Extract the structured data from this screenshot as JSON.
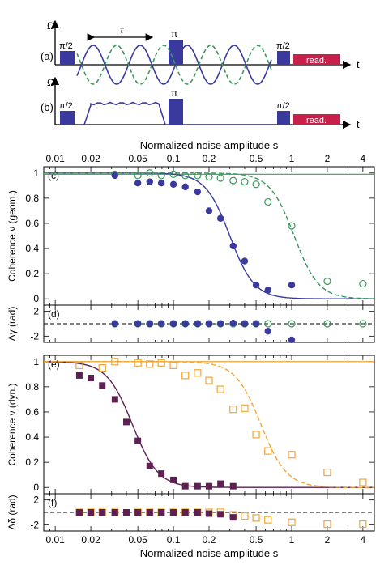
{
  "colors": {
    "blue": "#3a3a9e",
    "green": "#3a9a5c",
    "purple": "#5c2152",
    "orange": "#f2a634",
    "readout": "#c8204a",
    "pulse": "#3a3a9e"
  },
  "schematic": {
    "a": {
      "label": "(a)",
      "omega": "Ω",
      "t": "t",
      "pulse_left": "π/2",
      "pulse_mid": "π",
      "pulse_right": "π/2",
      "tau": "τ",
      "readout": "read."
    },
    "b": {
      "label": "(b)",
      "omega": "Ω",
      "t": "t",
      "pulse_left": "π/2",
      "pulse_mid": "π",
      "pulse_right": "π/2",
      "readout": "read."
    }
  },
  "chart_data": [
    {
      "panel": "(c)",
      "type": "scatter",
      "xlabel_top": "Normalized noise amplitude s",
      "ylabel": "Coherence ν (geom.)",
      "xscale": "log",
      "xlim": [
        0.008,
        5
      ],
      "ylim": [
        -0.05,
        1.05
      ],
      "xticks": [
        "0.01",
        "0.02",
        "0.05",
        "0.1",
        "0.2",
        "0.5",
        "1",
        "2",
        "4"
      ],
      "yticks": [
        "0",
        "0.2",
        "0.4",
        "0.6",
        "0.8",
        "1"
      ],
      "series": [
        {
          "style": "filled",
          "color": "blue",
          "x": [
            0.032,
            0.05,
            0.063,
            0.079,
            0.1,
            0.126,
            0.16,
            0.2,
            0.25,
            0.32,
            0.4,
            0.5,
            0.63,
            1.0
          ],
          "y": [
            0.98,
            0.92,
            0.93,
            0.92,
            0.91,
            0.89,
            0.85,
            0.7,
            0.64,
            0.42,
            0.3,
            0.11,
            0.07,
            0.11
          ]
        },
        {
          "style": "open",
          "color": "green",
          "x": [
            0.032,
            0.05,
            0.063,
            0.079,
            0.1,
            0.126,
            0.16,
            0.2,
            0.25,
            0.32,
            0.4,
            0.5,
            0.63,
            1.0,
            2.0,
            4.0
          ],
          "y": [
            0.99,
            0.98,
            1.0,
            0.98,
            0.99,
            0.98,
            0.98,
            0.97,
            0.96,
            0.94,
            0.93,
            0.91,
            0.77,
            0.58,
            0.14,
            0.12
          ]
        }
      ]
    },
    {
      "panel": "(d)",
      "type": "scatter",
      "ylabel": "Δγ (rad)",
      "xscale": "log",
      "xlim": [
        0.008,
        5
      ],
      "ylim": [
        -3,
        3
      ],
      "yticks": [
        "-2",
        "2"
      ],
      "series": [
        {
          "style": "filled",
          "color": "blue",
          "x": [
            0.032,
            0.05,
            0.063,
            0.079,
            0.1,
            0.126,
            0.16,
            0.2,
            0.25,
            0.32,
            0.4,
            0.5,
            0.63,
            1.0
          ],
          "y": [
            0,
            0,
            0,
            0,
            0,
            0,
            0,
            0,
            0,
            0.1,
            0,
            0,
            -1.2,
            -2.6
          ]
        },
        {
          "style": "open",
          "color": "green",
          "x": [
            0.032,
            0.05,
            0.063,
            0.079,
            0.1,
            0.126,
            0.16,
            0.2,
            0.25,
            0.32,
            0.4,
            0.5,
            0.63,
            1.0,
            2.0,
            4.0
          ],
          "y": [
            0,
            0,
            0,
            0,
            0,
            0,
            0,
            0,
            0,
            0,
            0,
            0,
            0,
            0,
            0,
            0
          ]
        }
      ]
    },
    {
      "panel": "(e)",
      "type": "scatter",
      "ylabel": "Coherence ν (dyn.)",
      "xscale": "log",
      "xlim": [
        0.008,
        5
      ],
      "ylim": [
        -0.05,
        1.05
      ],
      "yticks": [
        "0",
        "0.2",
        "0.4",
        "0.6",
        "0.8",
        "1"
      ],
      "series": [
        {
          "style": "filled-square",
          "color": "purple",
          "x": [
            0.016,
            0.02,
            0.025,
            0.032,
            0.04,
            0.05,
            0.063,
            0.079,
            0.1,
            0.126,
            0.16,
            0.2,
            0.25,
            0.32
          ],
          "y": [
            0.89,
            0.87,
            0.81,
            0.7,
            0.52,
            0.37,
            0.17,
            0.11,
            0.06,
            0.01,
            0.01,
            0.01,
            0.03,
            0.01
          ]
        },
        {
          "style": "open-square",
          "color": "orange",
          "x": [
            0.016,
            0.025,
            0.032,
            0.05,
            0.063,
            0.079,
            0.1,
            0.126,
            0.16,
            0.2,
            0.25,
            0.32,
            0.4,
            0.5,
            0.63,
            1.0,
            2.0,
            4.0
          ],
          "y": [
            0.97,
            0.95,
            1.0,
            0.99,
            0.98,
            0.99,
            0.97,
            0.89,
            0.91,
            0.85,
            0.78,
            0.62,
            0.63,
            0.42,
            0.29,
            0.26,
            0.12,
            0.04
          ]
        }
      ]
    },
    {
      "panel": "(f)",
      "type": "scatter",
      "ylabel": "Δδ (rad)",
      "xlabel": "Normalized noise amplitude s",
      "xscale": "log",
      "xlim": [
        0.008,
        5
      ],
      "ylim": [
        -3,
        3
      ],
      "xticks": [
        "0.01",
        "0.02",
        "0.05",
        "0.1",
        "0.2",
        "0.5",
        "1",
        "2",
        "4"
      ],
      "yticks": [
        "-2",
        "2"
      ],
      "series": [
        {
          "style": "filled-square",
          "color": "purple",
          "x": [
            0.016,
            0.02,
            0.025,
            0.032,
            0.04,
            0.05,
            0.063,
            0.079,
            0.1,
            0.126,
            0.16,
            0.2,
            0.25,
            0.32
          ],
          "y": [
            0,
            0,
            0,
            0,
            0,
            0,
            0,
            0,
            0,
            0,
            0,
            -0.2,
            -0.3,
            -0.8
          ]
        },
        {
          "style": "open-square",
          "color": "orange",
          "x": [
            0.016,
            0.02,
            0.025,
            0.032,
            0.05,
            0.063,
            0.079,
            0.1,
            0.126,
            0.16,
            0.2,
            0.25,
            0.32,
            0.4,
            0.5,
            0.63,
            1.0,
            2.0,
            4.0
          ],
          "y": [
            0,
            0,
            0,
            0,
            0,
            0,
            0,
            0,
            0,
            0,
            0,
            0,
            -0.4,
            -0.6,
            -0.9,
            -1.2,
            -1.6,
            -1.9,
            -1.9
          ]
        }
      ]
    }
  ]
}
